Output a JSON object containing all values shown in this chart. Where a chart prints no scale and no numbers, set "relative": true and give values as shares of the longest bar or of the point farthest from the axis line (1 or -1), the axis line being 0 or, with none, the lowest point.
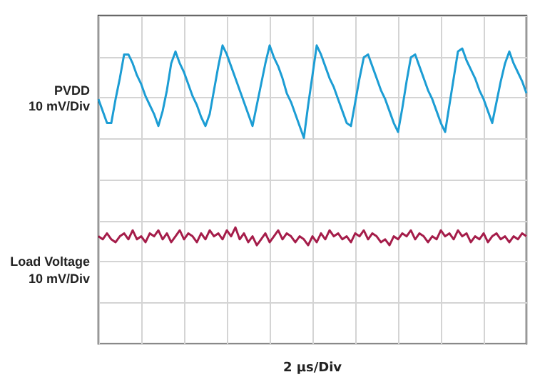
{
  "chart_data": {
    "type": "line",
    "relative": true,
    "xlabel": "2 µs/Div",
    "grid": true,
    "legend": false,
    "marker": "none",
    "annotations": [
      "10 mV/Div",
      "10 mV/Div"
    ],
    "categories": [
      null,
      null,
      null,
      null,
      null,
      null,
      null,
      null,
      null,
      null,
      null,
      null,
      null,
      null,
      null,
      null,
      null,
      null,
      null,
      null,
      null,
      null,
      null,
      null,
      null,
      null,
      null,
      null,
      null,
      null,
      null,
      null,
      null,
      null,
      null,
      null,
      null,
      null,
      null,
      null,
      null,
      null,
      null,
      null,
      null,
      null,
      null,
      null,
      null,
      null,
      null,
      null,
      null,
      null,
      null,
      null,
      null,
      null,
      null,
      null,
      null,
      null,
      null,
      null,
      null,
      null,
      null,
      null,
      null,
      null,
      null,
      null,
      null,
      null,
      null,
      null,
      null,
      null,
      null,
      null,
      null,
      null,
      null,
      null,
      null,
      null,
      null,
      null,
      null,
      null,
      null,
      null,
      null,
      null,
      null,
      null,
      null,
      null,
      null,
      null,
      null
    ],
    "series": [
      {
        "name": "PVDD",
        "color": "#1c9dd4",
        "values": [
          0.82,
          0.78,
          0.74,
          0.74,
          0.82,
          0.89,
          0.97,
          0.97,
          0.94,
          0.9,
          0.87,
          0.83,
          0.8,
          0.77,
          0.73,
          0.78,
          0.85,
          0.94,
          0.98,
          0.94,
          0.91,
          0.87,
          0.83,
          0.8,
          0.76,
          0.73,
          0.77,
          0.85,
          0.93,
          1.0,
          0.97,
          0.93,
          0.89,
          0.85,
          0.81,
          0.77,
          0.73,
          0.8,
          0.87,
          0.94,
          1.0,
          0.96,
          0.93,
          0.89,
          0.84,
          0.81,
          0.77,
          0.73,
          0.69,
          0.8,
          0.9,
          1.0,
          0.97,
          0.93,
          0.89,
          0.86,
          0.82,
          0.78,
          0.74,
          0.73,
          0.81,
          0.89,
          0.96,
          0.97,
          0.93,
          0.89,
          0.85,
          0.82,
          0.78,
          0.74,
          0.71,
          0.79,
          0.88,
          0.96,
          0.97,
          0.93,
          0.89,
          0.85,
          0.82,
          0.78,
          0.74,
          0.71,
          0.8,
          0.89,
          0.98,
          0.99,
          0.95,
          0.92,
          0.89,
          0.85,
          0.82,
          0.78,
          0.74,
          0.81,
          0.88,
          0.94,
          0.98,
          0.94,
          0.91,
          0.88,
          0.84
        ]
      },
      {
        "name": "Load Voltage",
        "color": "#a51d4a",
        "values": [
          0.36,
          0.35,
          0.37,
          0.35,
          0.34,
          0.36,
          0.37,
          0.35,
          0.38,
          0.35,
          0.36,
          0.34,
          0.37,
          0.36,
          0.38,
          0.35,
          0.37,
          0.34,
          0.36,
          0.38,
          0.35,
          0.37,
          0.36,
          0.34,
          0.37,
          0.35,
          0.38,
          0.36,
          0.37,
          0.35,
          0.38,
          0.36,
          0.39,
          0.35,
          0.37,
          0.34,
          0.36,
          0.33,
          0.35,
          0.37,
          0.34,
          0.36,
          0.38,
          0.35,
          0.37,
          0.36,
          0.34,
          0.36,
          0.35,
          0.33,
          0.36,
          0.34,
          0.37,
          0.35,
          0.38,
          0.36,
          0.37,
          0.35,
          0.36,
          0.34,
          0.37,
          0.36,
          0.38,
          0.35,
          0.37,
          0.36,
          0.34,
          0.35,
          0.33,
          0.36,
          0.35,
          0.37,
          0.36,
          0.38,
          0.35,
          0.37,
          0.36,
          0.34,
          0.36,
          0.35,
          0.38,
          0.36,
          0.37,
          0.35,
          0.38,
          0.36,
          0.37,
          0.34,
          0.36,
          0.35,
          0.37,
          0.34,
          0.36,
          0.37,
          0.35,
          0.36,
          0.34,
          0.36,
          0.35,
          0.37,
          0.36
        ]
      }
    ]
  }
}
